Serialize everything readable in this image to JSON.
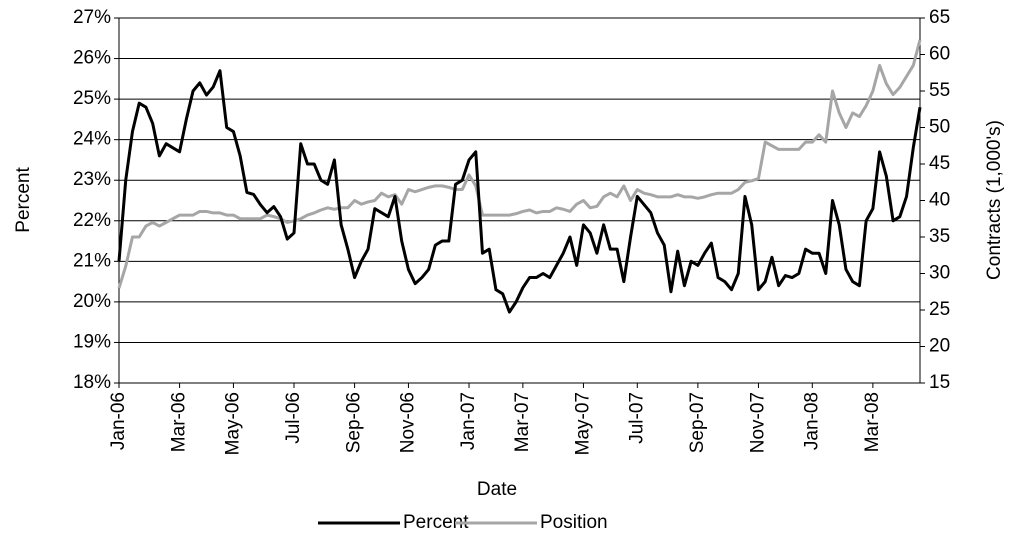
{
  "chart_data": {
    "type": "line",
    "x_label": "Date",
    "y_label": "Percent",
    "y2_label": "Contracts (1,000's)",
    "categories": [
      "Jan-06",
      null,
      null,
      null,
      null,
      null,
      null,
      null,
      null,
      "Mar-06",
      null,
      null,
      null,
      null,
      null,
      null,
      null,
      "May-06",
      null,
      null,
      null,
      null,
      null,
      null,
      null,
      null,
      "Jul-06",
      null,
      null,
      null,
      null,
      null,
      null,
      null,
      null,
      "Sep-06",
      null,
      null,
      null,
      null,
      null,
      null,
      null,
      "Nov-06",
      null,
      null,
      null,
      null,
      null,
      null,
      null,
      null,
      "Jan-07",
      null,
      null,
      null,
      null,
      null,
      null,
      null,
      "Mar-07",
      null,
      null,
      null,
      null,
      null,
      null,
      null,
      null,
      "May-07",
      null,
      null,
      null,
      null,
      null,
      null,
      null,
      "Jul-07",
      null,
      null,
      null,
      null,
      null,
      null,
      null,
      null,
      "Sep-07",
      null,
      null,
      null,
      null,
      null,
      null,
      null,
      null,
      "Nov-07",
      null,
      null,
      null,
      null,
      null,
      null,
      null,
      "Jan-08",
      null,
      null,
      null,
      null,
      null,
      null,
      null,
      null,
      "Mar-08",
      null,
      null,
      null,
      null,
      null,
      null,
      null
    ],
    "series": [
      {
        "name": "Percent",
        "color": "#000000",
        "axis": "y",
        "values": [
          21.0,
          23.0,
          24.2,
          24.9,
          24.8,
          24.4,
          23.6,
          23.9,
          23.8,
          23.7,
          24.5,
          25.2,
          25.4,
          25.1,
          25.3,
          25.7,
          24.3,
          24.2,
          23.6,
          22.7,
          22.65,
          22.4,
          22.2,
          22.35,
          22.1,
          21.55,
          21.7,
          23.9,
          23.4,
          23.4,
          23.0,
          22.9,
          23.5,
          21.9,
          21.3,
          20.6,
          21.0,
          21.3,
          22.3,
          22.2,
          22.1,
          22.6,
          21.5,
          20.8,
          20.45,
          20.6,
          20.8,
          21.4,
          21.5,
          21.5,
          22.9,
          23.0,
          23.5,
          23.7,
          21.2,
          21.3,
          20.3,
          20.2,
          19.75,
          20.0,
          20.35,
          20.6,
          20.6,
          20.7,
          20.6,
          20.9,
          21.2,
          21.6,
          20.9,
          21.9,
          21.7,
          21.2,
          21.9,
          21.3,
          21.3,
          20.5,
          21.6,
          22.6,
          22.4,
          22.2,
          21.7,
          21.4,
          20.25,
          21.25,
          20.4,
          21.0,
          20.9,
          21.2,
          21.45,
          20.6,
          20.5,
          20.3,
          20.7,
          22.6,
          21.9,
          20.3,
          20.5,
          21.1,
          20.4,
          20.65,
          20.6,
          20.7,
          21.3,
          21.2,
          21.2,
          20.7,
          22.5,
          21.9,
          20.8,
          20.5,
          20.4,
          22.0,
          22.3,
          23.7,
          23.1,
          22.0,
          22.1,
          22.6,
          23.8,
          24.8
        ]
      },
      {
        "name": "Position",
        "color": "#a6a6a6",
        "axis": "y2",
        "values": [
          28,
          31,
          35,
          35,
          36.5,
          37,
          36.5,
          37,
          37.5,
          38,
          38,
          38,
          38.5,
          38.5,
          38.3,
          38.3,
          38,
          38,
          37.5,
          37.5,
          37.5,
          37.5,
          38,
          37.8,
          37.5,
          37,
          37.2,
          37.5,
          38,
          38.3,
          38.7,
          39,
          38.8,
          39,
          39,
          40,
          39.5,
          39.8,
          40,
          41,
          40.5,
          40.8,
          39.5,
          41.5,
          41.2,
          41.5,
          41.8,
          42,
          42,
          41.8,
          41.5,
          41.5,
          43.5,
          42,
          38,
          38,
          38,
          38,
          38,
          38.2,
          38.5,
          38.7,
          38.3,
          38.5,
          38.5,
          39,
          38.8,
          38.5,
          39.5,
          40,
          39,
          39.2,
          40.5,
          41,
          40.5,
          42,
          40,
          41.5,
          41,
          40.8,
          40.5,
          40.5,
          40.5,
          40.8,
          40.5,
          40.5,
          40.3,
          40.5,
          40.8,
          41,
          41,
          41,
          41.5,
          42.5,
          42.7,
          43,
          48,
          47.5,
          47,
          47,
          47,
          47,
          48,
          48,
          49,
          48,
          55,
          52,
          50,
          52,
          51.5,
          53,
          55,
          58.5,
          56,
          54.5,
          55.5,
          57,
          58.5,
          62
        ]
      }
    ],
    "ylim": [
      18,
      27
    ],
    "yticks": [
      {
        "value": 18,
        "label": "18%"
      },
      {
        "value": 19,
        "label": "19%"
      },
      {
        "value": 20,
        "label": "20%"
      },
      {
        "value": 21,
        "label": "21%"
      },
      {
        "value": 22,
        "label": "22%"
      },
      {
        "value": 23,
        "label": "23%"
      },
      {
        "value": 24,
        "label": "24%"
      },
      {
        "value": 25,
        "label": "25%"
      },
      {
        "value": 26,
        "label": "26%"
      },
      {
        "value": 27,
        "label": "27%"
      }
    ],
    "y2lim": [
      15,
      65
    ],
    "y2ticks": [
      15,
      20,
      25,
      30,
      35,
      40,
      45,
      50,
      55,
      60,
      65
    ],
    "grid": true,
    "legend": "bottom"
  }
}
